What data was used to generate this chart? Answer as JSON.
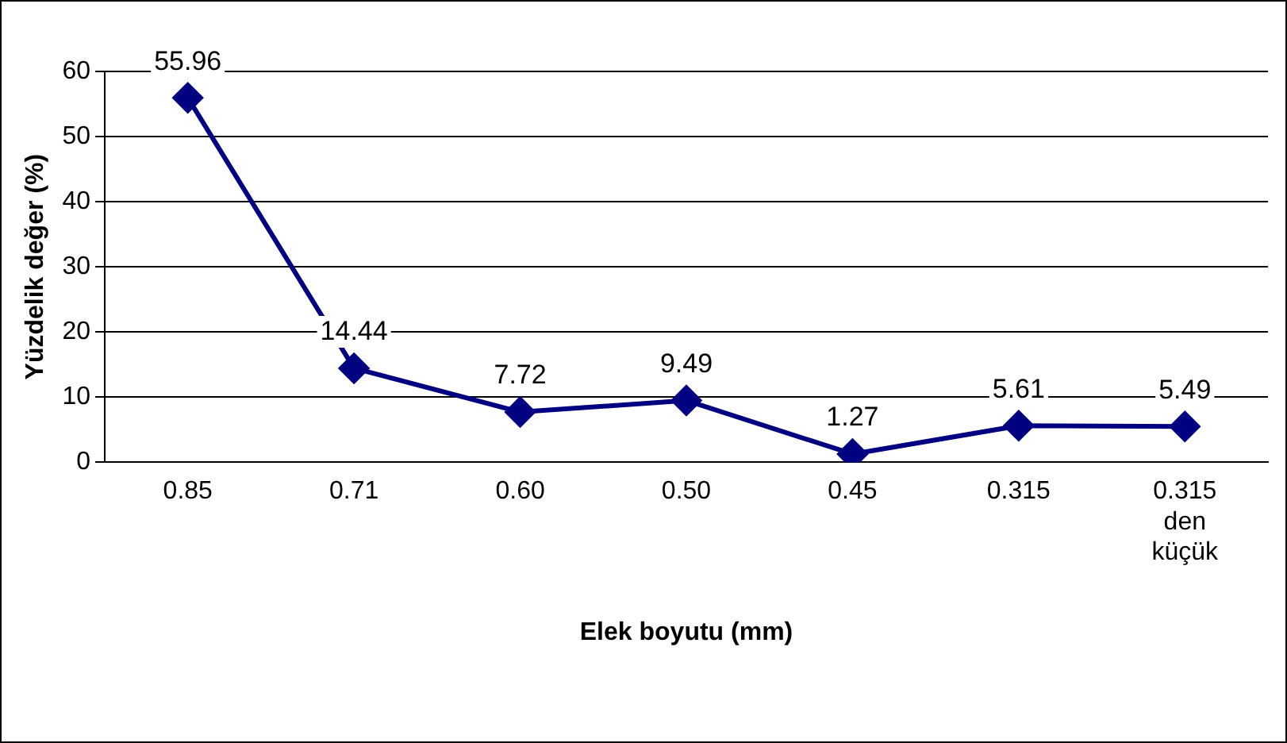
{
  "chart_data": {
    "type": "line",
    "xlabel": "Elek boyutu (mm)",
    "ylabel": "Yüzdelik değer (%)",
    "categories": [
      "0.85",
      "0.71",
      "0.60",
      "0.50",
      "0.45",
      "0.315",
      "0.315 den küçük"
    ],
    "series": [
      {
        "color": "#000080",
        "values": [
          55.96,
          14.44,
          7.72,
          9.49,
          1.27,
          5.61,
          5.49
        ]
      }
    ],
    "ylim": [
      0,
      60
    ],
    "yticks": [
      0,
      10,
      20,
      30,
      40,
      50,
      60
    ],
    "grid": "y",
    "legend": false,
    "marker": "diamond",
    "line_style": "solid",
    "data_labels": true
  }
}
